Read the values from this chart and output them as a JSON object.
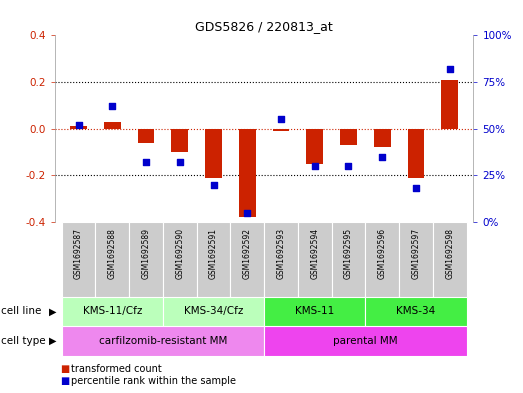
{
  "title": "GDS5826 / 220813_at",
  "samples": [
    "GSM1692587",
    "GSM1692588",
    "GSM1692589",
    "GSM1692590",
    "GSM1692591",
    "GSM1692592",
    "GSM1692593",
    "GSM1692594",
    "GSM1692595",
    "GSM1692596",
    "GSM1692597",
    "GSM1692598"
  ],
  "transformed_count": [
    0.01,
    0.03,
    -0.06,
    -0.1,
    -0.21,
    -0.38,
    -0.01,
    -0.15,
    -0.07,
    -0.08,
    -0.21,
    0.21
  ],
  "percentile_rank_pct": [
    52,
    62,
    32,
    32,
    20,
    5,
    55,
    30,
    30,
    35,
    18,
    82
  ],
  "ylim_left": [
    -0.4,
    0.4
  ],
  "ylim_right": [
    0,
    100
  ],
  "yticks_left": [
    -0.4,
    -0.2,
    0.0,
    0.2,
    0.4
  ],
  "yticks_right": [
    0,
    25,
    50,
    75,
    100
  ],
  "ytick_labels_right": [
    "0%",
    "25%",
    "50%",
    "75%",
    "100%"
  ],
  "cell_line_groups": [
    {
      "label": "KMS-11/Cfz",
      "start": 0,
      "end": 2,
      "color": "#bbffbb"
    },
    {
      "label": "KMS-34/Cfz",
      "start": 3,
      "end": 5,
      "color": "#bbffbb"
    },
    {
      "label": "KMS-11",
      "start": 6,
      "end": 8,
      "color": "#44ee44"
    },
    {
      "label": "KMS-34",
      "start": 9,
      "end": 11,
      "color": "#44ee44"
    }
  ],
  "cell_type_groups": [
    {
      "label": "carfilzomib-resistant MM",
      "start": 0,
      "end": 5,
      "color": "#ee88ee"
    },
    {
      "label": "parental MM",
      "start": 6,
      "end": 11,
      "color": "#ee44ee"
    }
  ],
  "bar_color": "#cc2200",
  "dot_color": "#0000cc",
  "bar_width": 0.5,
  "dot_size": 22,
  "sample_bg": "#cccccc",
  "legend_bar_label": "transformed count",
  "legend_dot_label": "percentile rank within the sample"
}
